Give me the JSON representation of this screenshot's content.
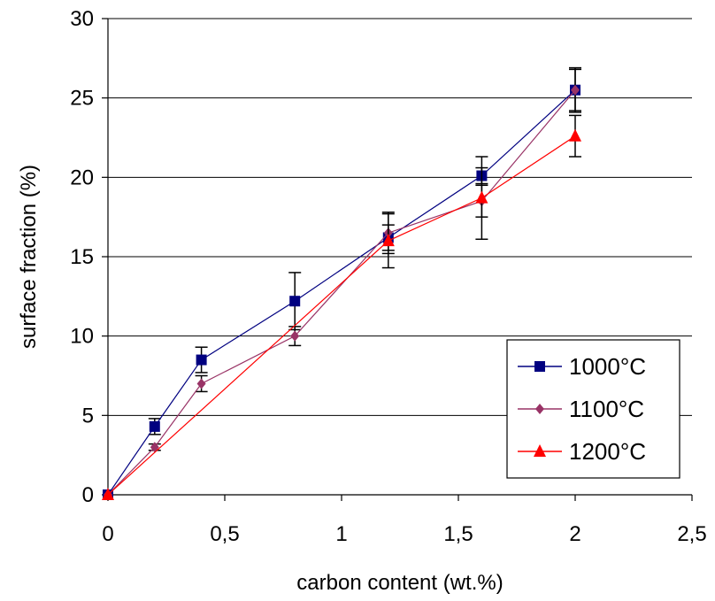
{
  "chart_data": {
    "type": "line",
    "title": "",
    "xlabel": "carbon content (wt.%)",
    "ylabel": "surface fraction (%)",
    "xlim": [
      0,
      2.5
    ],
    "ylim": [
      0,
      30
    ],
    "x_ticks": [
      0,
      0.5,
      1,
      1.5,
      2,
      2.5
    ],
    "x_tick_labels": [
      "0",
      "0,5",
      "1",
      "1,5",
      "2",
      "2,5"
    ],
    "y_ticks": [
      0,
      5,
      10,
      15,
      20,
      25,
      30
    ],
    "y_tick_labels": [
      "0",
      "5",
      "10",
      "15",
      "20",
      "25",
      "30"
    ],
    "grid": "horizontal",
    "legend_position": "bottom-right",
    "series": [
      {
        "name": "1000°C",
        "color": "#000080",
        "marker": "square",
        "x": [
          0,
          0.2,
          0.4,
          0.8,
          1.2,
          1.6,
          2.0
        ],
        "y": [
          0,
          4.3,
          8.5,
          12.2,
          16.2,
          20.1,
          25.5
        ],
        "error": [
          0,
          0.5,
          0.8,
          1.8,
          0.8,
          0.5,
          1.4
        ]
      },
      {
        "name": "1100°C",
        "color": "#993366",
        "marker": "diamond",
        "x": [
          0,
          0.2,
          0.4,
          0.8,
          1.2,
          1.6,
          2.0
        ],
        "y": [
          0,
          3.0,
          7.0,
          10.0,
          16.5,
          18.5,
          25.5
        ],
        "error": [
          0,
          0.2,
          0.5,
          0.6,
          1.3,
          1.0,
          1.3
        ]
      },
      {
        "name": "1200°C",
        "color": "#ff0000",
        "marker": "triangle",
        "x": [
          0,
          1.2,
          1.6,
          2.0
        ],
        "y": [
          0,
          16.0,
          18.7,
          22.6
        ],
        "error": [
          0,
          1.7,
          2.6,
          1.3
        ]
      }
    ]
  }
}
